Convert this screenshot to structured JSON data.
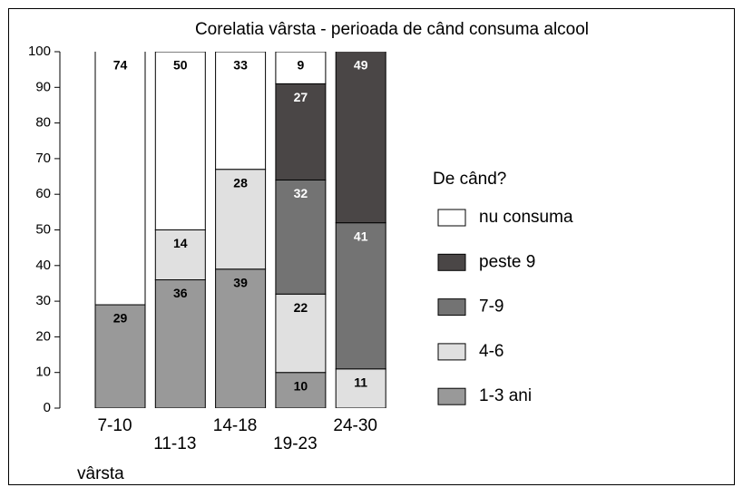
{
  "chart_data": {
    "type": "stacked-bar",
    "title": "Corelatia vârsta - perioada de când consuma alcool",
    "x_label": "vârsta",
    "legend_title": "De când?",
    "categories": [
      "7-10",
      "11-13",
      "14-18",
      "19-23",
      "24-30"
    ],
    "series": [
      {
        "name": "1-3 ani",
        "color": "#999999",
        "values": [
          29,
          36,
          39,
          10,
          null
        ]
      },
      {
        "name": "4-6",
        "color": "#e0e0e0",
        "values": [
          null,
          14,
          28,
          22,
          11
        ]
      },
      {
        "name": "7-9",
        "color": "#737373",
        "values": [
          null,
          null,
          null,
          32,
          41
        ]
      },
      {
        "name": "peste 9",
        "color": "#4a4646",
        "values": [
          null,
          null,
          null,
          27,
          49
        ]
      },
      {
        "name": "nu consuma",
        "color": "#ffffff",
        "values": [
          74,
          50,
          33,
          9,
          null
        ]
      }
    ],
    "ylim": [
      0,
      100
    ],
    "yticks": [
      0,
      10,
      20,
      30,
      40,
      50,
      60,
      70,
      80,
      90,
      100
    ],
    "legend": "right"
  }
}
